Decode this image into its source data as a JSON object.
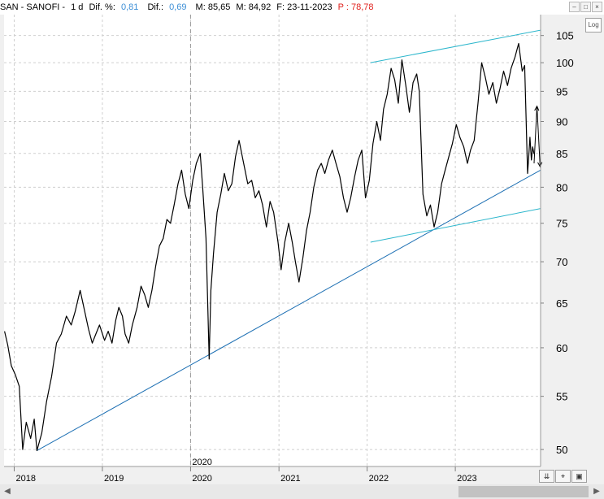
{
  "header": {
    "symbol": "SAN - SANOFI -",
    "period": "1 d",
    "dif_pct_label": "Dif. %:",
    "dif_pct_value": "0,81",
    "dif_label": "Dif.:",
    "dif_value": "0,69",
    "m_label": "M: 85,65",
    "m2_label": "M: 84,92",
    "f_label": "F: 23-11-2023",
    "p_label": "P : 78,78"
  },
  "toolbar": {
    "log_label": "Log"
  },
  "colors": {
    "price": "#000000",
    "trendline": "#1c6fb3",
    "channel": "#2bb6cc",
    "grid": "#cfcfcf",
    "header_blue": "#3d8fd6",
    "header_red": "#e0201c"
  },
  "icons": {
    "log_toggle": "log-scale-toggle",
    "zoom_fit": "double-chevron-down-icon",
    "cursor": "crosshair-cursor-icon",
    "window": "window-icon"
  },
  "chart_data": {
    "type": "line",
    "title": "SAN - SANOFI -",
    "y_scale": "log",
    "ylim": [
      48.5,
      109
    ],
    "y_ticks": [
      50,
      55,
      60,
      65,
      70,
      75,
      80,
      85,
      90,
      95,
      100,
      105
    ],
    "x_range": [
      "2017-11-20",
      "2023-12-20"
    ],
    "x_ticks": [
      {
        "label": "2018",
        "date": "2018-01-01"
      },
      {
        "label": "2019",
        "date": "2019-01-01"
      },
      {
        "label": "2020",
        "date": "2020-01-01"
      },
      {
        "label": "2021",
        "date": "2021-01-01"
      },
      {
        "label": "2022",
        "date": "2022-01-01"
      },
      {
        "label": "2023",
        "date": "2023-01-01"
      }
    ],
    "marker": {
      "label": "2020",
      "date": "2020-01-01"
    },
    "grid": true,
    "series": [
      {
        "name": "SAN",
        "points": [
          [
            "2017-11-22",
            61.8
          ],
          [
            "2017-12-05",
            60.3
          ],
          [
            "2017-12-20",
            58.1
          ],
          [
            "2018-01-05",
            57.2
          ],
          [
            "2018-01-22",
            56.0
          ],
          [
            "2018-02-05",
            50.0
          ],
          [
            "2018-02-20",
            52.5
          ],
          [
            "2018-03-10",
            51.0
          ],
          [
            "2018-03-25",
            52.8
          ],
          [
            "2018-04-05",
            49.9
          ],
          [
            "2018-04-25",
            51.5
          ],
          [
            "2018-05-15",
            54.5
          ],
          [
            "2018-06-05",
            57.0
          ],
          [
            "2018-06-25",
            60.5
          ],
          [
            "2018-07-15",
            61.5
          ],
          [
            "2018-08-05",
            63.5
          ],
          [
            "2018-08-25",
            62.5
          ],
          [
            "2018-09-10",
            64.0
          ],
          [
            "2018-10-01",
            66.5
          ],
          [
            "2018-10-20",
            64.0
          ],
          [
            "2018-11-05",
            62.0
          ],
          [
            "2018-11-20",
            60.5
          ],
          [
            "2018-12-05",
            61.5
          ],
          [
            "2018-12-20",
            62.5
          ],
          [
            "2019-01-10",
            60.8
          ],
          [
            "2019-01-25",
            61.8
          ],
          [
            "2019-02-10",
            60.5
          ],
          [
            "2019-02-25",
            63.0
          ],
          [
            "2019-03-10",
            64.5
          ],
          [
            "2019-03-25",
            63.5
          ],
          [
            "2019-04-05",
            61.5
          ],
          [
            "2019-04-20",
            60.5
          ],
          [
            "2019-05-05",
            62.5
          ],
          [
            "2019-05-25",
            64.5
          ],
          [
            "2019-06-10",
            67.0
          ],
          [
            "2019-06-25",
            66.0
          ],
          [
            "2019-07-10",
            64.5
          ],
          [
            "2019-07-25",
            66.5
          ],
          [
            "2019-08-10",
            69.5
          ],
          [
            "2019-08-25",
            72.0
          ],
          [
            "2019-09-10",
            73.0
          ],
          [
            "2019-09-25",
            75.5
          ],
          [
            "2019-10-10",
            75.0
          ],
          [
            "2019-10-25",
            77.5
          ],
          [
            "2019-11-10",
            80.5
          ],
          [
            "2019-11-25",
            82.5
          ],
          [
            "2019-12-10",
            79.0
          ],
          [
            "2019-12-25",
            77.0
          ],
          [
            "2020-01-10",
            81.0
          ],
          [
            "2020-01-25",
            83.5
          ],
          [
            "2020-02-10",
            85.0
          ],
          [
            "2020-02-20",
            80.0
          ],
          [
            "2020-03-05",
            73.0
          ],
          [
            "2020-03-12",
            65.0
          ],
          [
            "2020-03-18",
            58.8
          ],
          [
            "2020-03-25",
            66.5
          ],
          [
            "2020-04-05",
            71.0
          ],
          [
            "2020-04-20",
            76.5
          ],
          [
            "2020-05-05",
            79.0
          ],
          [
            "2020-05-20",
            82.0
          ],
          [
            "2020-06-05",
            79.5
          ],
          [
            "2020-06-20",
            80.5
          ],
          [
            "2020-07-05",
            84.5
          ],
          [
            "2020-07-20",
            87.0
          ],
          [
            "2020-08-05",
            84.0
          ],
          [
            "2020-08-25",
            80.5
          ],
          [
            "2020-09-10",
            81.0
          ],
          [
            "2020-09-25",
            78.5
          ],
          [
            "2020-10-10",
            79.5
          ],
          [
            "2020-10-25",
            77.5
          ],
          [
            "2020-11-10",
            74.5
          ],
          [
            "2020-11-25",
            78.0
          ],
          [
            "2020-12-10",
            76.5
          ],
          [
            "2020-12-28",
            72.5
          ],
          [
            "2021-01-10",
            69.0
          ],
          [
            "2021-01-25",
            72.5
          ],
          [
            "2021-02-10",
            75.0
          ],
          [
            "2021-02-25",
            72.5
          ],
          [
            "2021-03-10",
            70.0
          ],
          [
            "2021-03-25",
            67.5
          ],
          [
            "2021-04-10",
            70.5
          ],
          [
            "2021-04-25",
            74.0
          ],
          [
            "2021-05-10",
            76.5
          ],
          [
            "2021-05-25",
            80.0
          ],
          [
            "2021-06-10",
            82.5
          ],
          [
            "2021-06-25",
            83.5
          ],
          [
            "2021-07-10",
            82.0
          ],
          [
            "2021-07-25",
            84.0
          ],
          [
            "2021-08-10",
            85.5
          ],
          [
            "2021-08-25",
            83.5
          ],
          [
            "2021-09-10",
            81.5
          ],
          [
            "2021-09-25",
            78.5
          ],
          [
            "2021-10-10",
            76.5
          ],
          [
            "2021-10-25",
            78.5
          ],
          [
            "2021-11-10",
            81.5
          ],
          [
            "2021-11-25",
            84.0
          ],
          [
            "2021-12-10",
            85.5
          ],
          [
            "2021-12-25",
            78.5
          ],
          [
            "2022-01-10",
            81.0
          ],
          [
            "2022-01-25",
            86.5
          ],
          [
            "2022-02-10",
            90.0
          ],
          [
            "2022-02-25",
            87.0
          ],
          [
            "2022-03-10",
            92.0
          ],
          [
            "2022-03-25",
            94.5
          ],
          [
            "2022-04-10",
            99.0
          ],
          [
            "2022-04-25",
            97.0
          ],
          [
            "2022-05-10",
            93.0
          ],
          [
            "2022-05-25",
            100.5
          ],
          [
            "2022-06-10",
            96.0
          ],
          [
            "2022-06-25",
            91.5
          ],
          [
            "2022-07-10",
            96.5
          ],
          [
            "2022-07-25",
            98.0
          ],
          [
            "2022-08-05",
            95.0
          ],
          [
            "2022-08-12",
            87.0
          ],
          [
            "2022-08-20",
            79.0
          ],
          [
            "2022-09-05",
            76.0
          ],
          [
            "2022-09-20",
            77.5
          ],
          [
            "2022-10-05",
            74.5
          ],
          [
            "2022-10-20",
            76.5
          ],
          [
            "2022-11-05",
            80.5
          ],
          [
            "2022-11-20",
            82.5
          ],
          [
            "2022-12-05",
            84.5
          ],
          [
            "2022-12-20",
            86.5
          ],
          [
            "2023-01-05",
            89.5
          ],
          [
            "2023-01-20",
            87.5
          ],
          [
            "2023-02-05",
            86.0
          ],
          [
            "2023-02-20",
            83.5
          ],
          [
            "2023-03-05",
            85.5
          ],
          [
            "2023-03-20",
            87.0
          ],
          [
            "2023-04-05",
            93.0
          ],
          [
            "2023-04-20",
            100.0
          ],
          [
            "2023-05-05",
            97.5
          ],
          [
            "2023-05-20",
            94.5
          ],
          [
            "2023-06-05",
            96.5
          ],
          [
            "2023-06-20",
            93.0
          ],
          [
            "2023-07-05",
            95.5
          ],
          [
            "2023-07-20",
            98.5
          ],
          [
            "2023-08-05",
            96.0
          ],
          [
            "2023-08-20",
            99.0
          ],
          [
            "2023-09-05",
            101.0
          ],
          [
            "2023-09-20",
            103.5
          ],
          [
            "2023-10-05",
            98.5
          ],
          [
            "2023-10-15",
            99.5
          ],
          [
            "2023-10-27",
            82.0
          ],
          [
            "2023-11-01",
            84.5
          ],
          [
            "2023-11-06",
            87.5
          ],
          [
            "2023-11-12",
            84.0
          ],
          [
            "2023-11-17",
            86.0
          ],
          [
            "2023-11-23",
            84.9
          ]
        ]
      }
    ],
    "trendlines": [
      {
        "from": [
          "2018-04-05",
          49.9
        ],
        "to": [
          "2023-12-20",
          82.5
        ]
      },
      {
        "from": [
          "2022-01-15",
          100.0
        ],
        "to": [
          "2023-12-20",
          106.0
        ]
      },
      {
        "from": [
          "2022-01-15",
          72.5
        ],
        "to": [
          "2023-12-20",
          77.0
        ]
      }
    ],
    "arrows": [
      {
        "from": [
          "2023-11-23",
          83.5
        ],
        "to": [
          "2023-12-05",
          92.5
        ]
      },
      {
        "from": [
          "2023-12-05",
          92.5
        ],
        "to": [
          "2023-12-18",
          83.0
        ]
      }
    ]
  }
}
